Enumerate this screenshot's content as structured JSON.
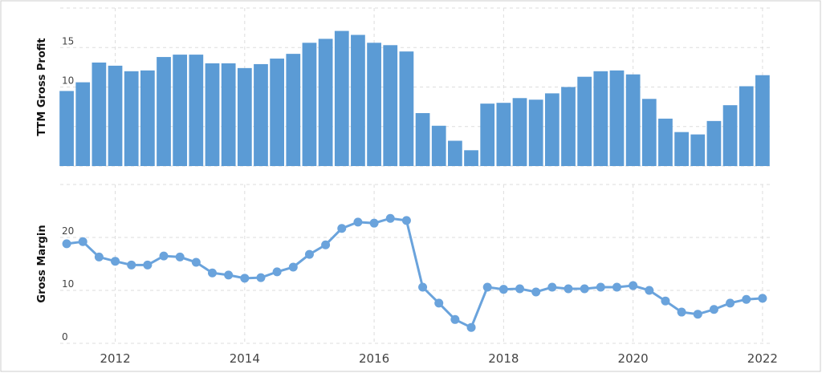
{
  "chart_data": [
    {
      "type": "bar",
      "y_label": "TTM Gross Profit",
      "color": "#5b9bd5",
      "x": [
        2011.25,
        2011.5,
        2011.75,
        2012,
        2012.25,
        2012.5,
        2012.75,
        2013,
        2013.25,
        2013.5,
        2013.75,
        2014,
        2014.25,
        2014.5,
        2014.75,
        2015,
        2015.25,
        2015.5,
        2015.75,
        2016,
        2016.25,
        2016.5,
        2016.75,
        2017,
        2017.25,
        2017.5,
        2017.75,
        2018,
        2018.25,
        2018.5,
        2018.75,
        2019,
        2019.25,
        2019.5,
        2019.75,
        2020,
        2020.25,
        2020.5,
        2020.75,
        2021,
        2021.25,
        2021.5,
        2021.75,
        2022
      ],
      "values": [
        9.5,
        10.6,
        13.1,
        12.7,
        12.0,
        12.1,
        13.8,
        14.1,
        14.1,
        13.0,
        13.0,
        12.4,
        12.9,
        13.6,
        14.2,
        15.6,
        16.1,
        17.1,
        16.6,
        15.6,
        15.3,
        14.5,
        6.7,
        5.1,
        3.2,
        2.0,
        7.9,
        8.0,
        8.6,
        8.4,
        9.2,
        10.0,
        11.3,
        12.0,
        12.1,
        11.6,
        8.5,
        6.0,
        4.3,
        4.0,
        5.7,
        7.7,
        10.1,
        11.5
      ],
      "xlim": [
        2011.15,
        2022.15
      ],
      "ylim": [
        0,
        20
      ],
      "yticks": [
        0,
        5,
        10,
        15
      ],
      "grid": true
    },
    {
      "type": "line",
      "y_label": "Gross Margin",
      "color": "#6aa3dc",
      "x": [
        2011.25,
        2011.5,
        2011.75,
        2012,
        2012.25,
        2012.5,
        2012.75,
        2013,
        2013.25,
        2013.5,
        2013.75,
        2014,
        2014.25,
        2014.5,
        2014.75,
        2015,
        2015.25,
        2015.5,
        2015.75,
        2016,
        2016.25,
        2016.5,
        2016.75,
        2017,
        2017.25,
        2017.5,
        2017.75,
        2018,
        2018.25,
        2018.5,
        2018.75,
        2019,
        2019.25,
        2019.5,
        2019.75,
        2020,
        2020.25,
        2020.5,
        2020.75,
        2021,
        2021.25,
        2021.5,
        2021.75,
        2022
      ],
      "values": [
        18.8,
        19.2,
        16.3,
        15.5,
        14.8,
        14.8,
        16.5,
        16.3,
        15.3,
        13.3,
        12.9,
        12.3,
        12.4,
        13.5,
        14.4,
        16.8,
        18.6,
        21.7,
        22.9,
        22.7,
        23.6,
        23.2,
        10.6,
        7.6,
        4.5,
        3.0,
        10.6,
        10.2,
        10.3,
        9.7,
        10.6,
        10.3,
        10.3,
        10.6,
        10.6,
        10.9,
        10.0,
        8.0,
        5.9,
        5.5,
        6.4,
        7.6,
        8.3,
        8.5
      ],
      "xlim": [
        2011.15,
        2022.15
      ],
      "ylim": [
        0,
        30
      ],
      "yticks": [
        0,
        10,
        20
      ],
      "xticks": [
        2012,
        2014,
        2016,
        2018,
        2020,
        2022
      ],
      "grid": true
    }
  ]
}
